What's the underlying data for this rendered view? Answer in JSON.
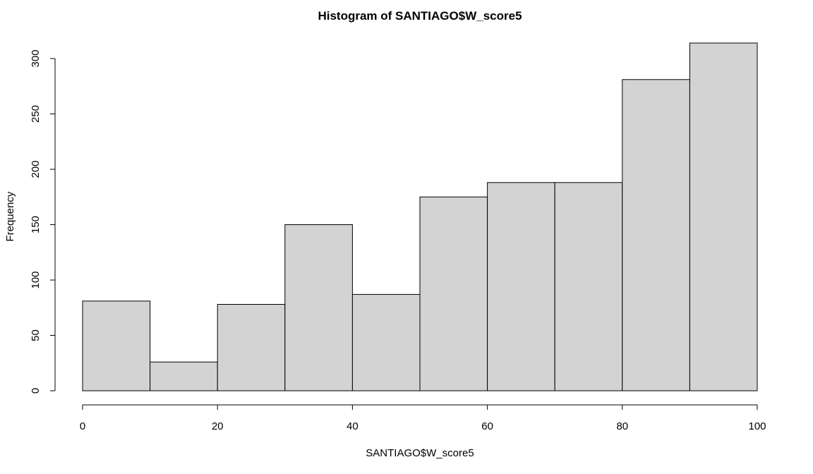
{
  "chart_data": {
    "type": "bar",
    "title": "Histogram of SANTIAGO$W_score5",
    "xlabel": "SANTIAGO$W_score5",
    "ylabel": "Frequency",
    "bins": [
      {
        "from": 0,
        "to": 10,
        "count": 81
      },
      {
        "from": 10,
        "to": 20,
        "count": 26
      },
      {
        "from": 20,
        "to": 30,
        "count": 78
      },
      {
        "from": 30,
        "to": 40,
        "count": 150
      },
      {
        "from": 40,
        "to": 50,
        "count": 87
      },
      {
        "from": 50,
        "to": 60,
        "count": 175
      },
      {
        "from": 60,
        "to": 70,
        "count": 188
      },
      {
        "from": 70,
        "to": 80,
        "count": 188
      },
      {
        "from": 80,
        "to": 90,
        "count": 281
      },
      {
        "from": 90,
        "to": 100,
        "count": 314
      }
    ],
    "xlim": [
      0,
      100
    ],
    "ylim": [
      0,
      314
    ],
    "x_ticks": [
      0,
      20,
      40,
      60,
      80,
      100
    ],
    "y_ticks": [
      0,
      50,
      100,
      150,
      200,
      250,
      300
    ],
    "grid": false,
    "bar_color": "#d3d3d3",
    "edge_color": "#000000"
  }
}
